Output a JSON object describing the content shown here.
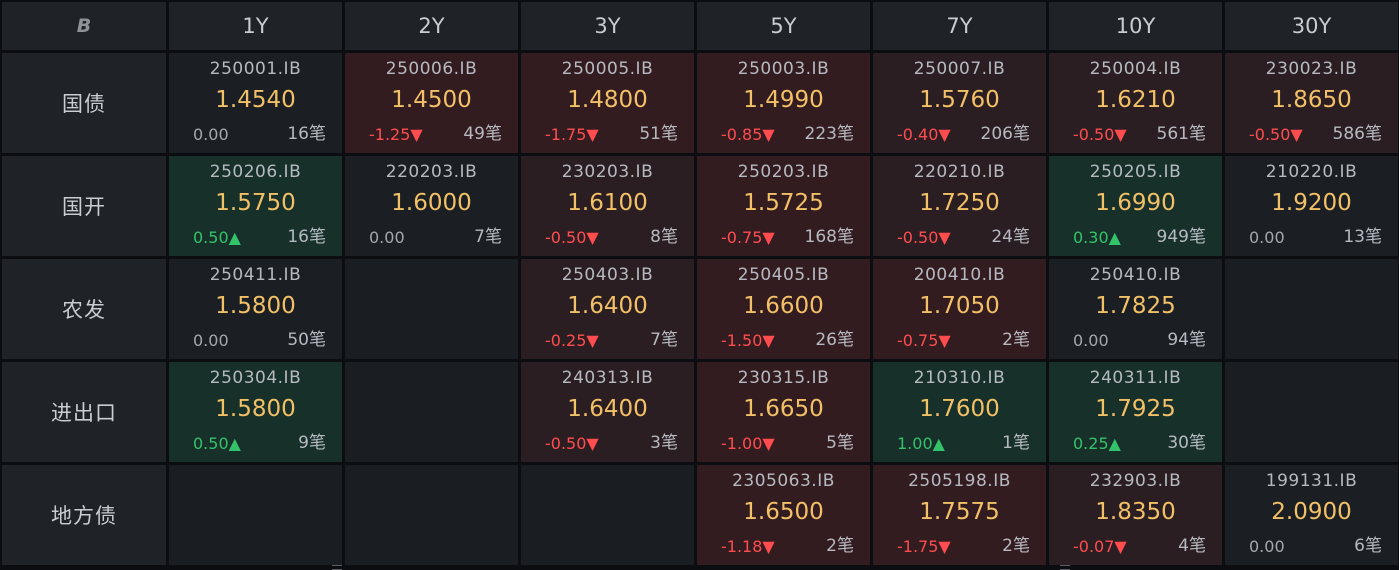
{
  "header": {
    "logo_char": "B",
    "tenors": [
      "1Y",
      "2Y",
      "3Y",
      "5Y",
      "7Y",
      "10Y",
      "30Y"
    ]
  },
  "colors": {
    "yield": "#f2c066",
    "negative": "#ff4d4f",
    "positive": "#34c26a",
    "down_bg": "#331c20",
    "up_bg": "#17302a"
  },
  "rows": [
    {
      "label": "国债",
      "cells": [
        {
          "code": "250001.IB",
          "yield": "1.4540",
          "change": "0.00",
          "trend": "flat",
          "count": "16笔"
        },
        {
          "code": "250006.IB",
          "yield": "1.4500",
          "change": "-1.25▼",
          "trend": "down",
          "count": "49笔"
        },
        {
          "code": "250005.IB",
          "yield": "1.4800",
          "change": "-1.75▼",
          "trend": "down",
          "count": "51笔"
        },
        {
          "code": "250003.IB",
          "yield": "1.4990",
          "change": "-0.85▼",
          "trend": "down",
          "count": "223笔"
        },
        {
          "code": "250007.IB",
          "yield": "1.5760",
          "change": "-0.40▼",
          "trend": "down",
          "count": "206笔"
        },
        {
          "code": "250004.IB",
          "yield": "1.6210",
          "change": "-0.50▼",
          "trend": "down",
          "count": "561笔"
        },
        {
          "code": "230023.IB",
          "yield": "1.8650",
          "change": "-0.50▼",
          "trend": "down",
          "count": "586笔"
        }
      ]
    },
    {
      "label": "国开",
      "cells": [
        {
          "code": "250206.IB",
          "yield": "1.5750",
          "change": "0.50▲",
          "trend": "up",
          "count": "16笔"
        },
        {
          "code": "220203.IB",
          "yield": "1.6000",
          "change": "0.00",
          "trend": "flat",
          "count": "7笔"
        },
        {
          "code": "230203.IB",
          "yield": "1.6100",
          "change": "-0.50▼",
          "trend": "down",
          "count": "8笔"
        },
        {
          "code": "250203.IB",
          "yield": "1.5725",
          "change": "-0.75▼",
          "trend": "down",
          "count": "168笔"
        },
        {
          "code": "220210.IB",
          "yield": "1.7250",
          "change": "-0.50▼",
          "trend": "down",
          "count": "24笔"
        },
        {
          "code": "250205.IB",
          "yield": "1.6990",
          "change": "0.30▲",
          "trend": "up",
          "count": "949笔"
        },
        {
          "code": "210220.IB",
          "yield": "1.9200",
          "change": "0.00",
          "trend": "flat",
          "count": "13笔"
        }
      ]
    },
    {
      "label": "农发",
      "cells": [
        {
          "code": "250411.IB",
          "yield": "1.5800",
          "change": "0.00",
          "trend": "flat",
          "count": "50笔"
        },
        null,
        {
          "code": "250403.IB",
          "yield": "1.6400",
          "change": "-0.25▼",
          "trend": "down",
          "count": "7笔"
        },
        {
          "code": "250405.IB",
          "yield": "1.6600",
          "change": "-1.50▼",
          "trend": "down",
          "count": "26笔"
        },
        {
          "code": "200410.IB",
          "yield": "1.7050",
          "change": "-0.75▼",
          "trend": "down",
          "count": "2笔"
        },
        {
          "code": "250410.IB",
          "yield": "1.7825",
          "change": "0.00",
          "trend": "flat",
          "count": "94笔"
        },
        null
      ]
    },
    {
      "label": "进出口",
      "cells": [
        {
          "code": "250304.IB",
          "yield": "1.5800",
          "change": "0.50▲",
          "trend": "up",
          "count": "9笔"
        },
        null,
        {
          "code": "240313.IB",
          "yield": "1.6400",
          "change": "-0.50▼",
          "trend": "down",
          "count": "3笔"
        },
        {
          "code": "230315.IB",
          "yield": "1.6650",
          "change": "-1.00▼",
          "trend": "down",
          "count": "5笔"
        },
        {
          "code": "210310.IB",
          "yield": "1.7600",
          "change": "1.00▲",
          "trend": "up",
          "count": "1笔"
        },
        {
          "code": "240311.IB",
          "yield": "1.7925",
          "change": "0.25▲",
          "trend": "up",
          "count": "30笔"
        },
        null
      ]
    },
    {
      "label": "地方债",
      "cells": [
        null,
        null,
        null,
        {
          "code": "2305063.IB",
          "yield": "1.6500",
          "change": "-1.18▼",
          "trend": "down",
          "count": "2笔"
        },
        {
          "code": "2505198.IB",
          "yield": "1.7575",
          "change": "-1.75▼",
          "trend": "down",
          "count": "2笔"
        },
        {
          "code": "232903.IB",
          "yield": "1.8350",
          "change": "-0.07▼",
          "trend": "down",
          "count": "4笔"
        },
        {
          "code": "199131.IB",
          "yield": "2.0900",
          "change": "0.00",
          "trend": "flat",
          "count": "6笔"
        }
      ]
    }
  ]
}
